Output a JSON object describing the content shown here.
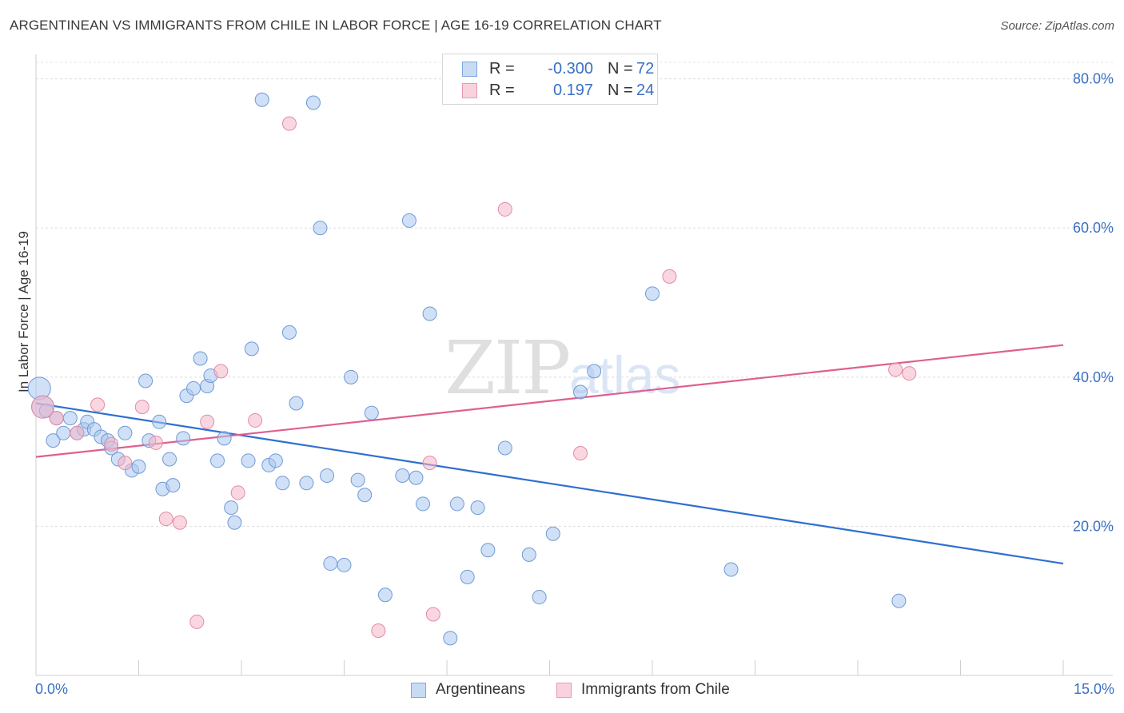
{
  "header": {
    "title": "ARGENTINEAN VS IMMIGRANTS FROM CHILE IN LABOR FORCE | AGE 16-19 CORRELATION CHART",
    "source": "Source: ZipAtlas.com"
  },
  "watermark": {
    "zip": "ZIP",
    "atlas": "atlas"
  },
  "legend": {
    "rows": [
      {
        "r_label": "R =",
        "r_value": "-0.300",
        "n_label": "N =",
        "n_value": "72",
        "color": "#a9c6ee"
      },
      {
        "r_label": "R =",
        "r_value": "0.197",
        "n_label": "N =",
        "n_value": "24",
        "color": "#f4b6c8"
      }
    ]
  },
  "bottom_legend": [
    {
      "label": "Argentineans",
      "color": "#a9c6ee"
    },
    {
      "label": "Immigrants from Chile",
      "color": "#f4b6c8"
    }
  ],
  "chart_data": {
    "type": "scatter",
    "ylabel": "In Labor Force | Age 16-19",
    "xlim": [
      0,
      15
    ],
    "ylim": [
      0,
      82
    ],
    "x_tick_labels": [
      {
        "value": 0,
        "label": "0.0%"
      },
      {
        "value": 15,
        "label": "15.0%"
      }
    ],
    "y_tick_labels": [
      {
        "value": 20,
        "label": "20.0%"
      },
      {
        "value": 40,
        "label": "40.0%"
      },
      {
        "value": 60,
        "label": "60.0%"
      },
      {
        "value": 80,
        "label": "80.0%"
      }
    ],
    "grid": true,
    "series": [
      {
        "name": "Argentineans",
        "color": "#a9c6ee",
        "stroke": "#6f9ad6",
        "trend_color": "#2f6fd0",
        "trend": {
          "x": [
            0,
            15
          ],
          "y": [
            36.5,
            15.0
          ]
        },
        "points": [
          [
            0.05,
            38.5
          ],
          [
            0.1,
            36.0
          ],
          [
            0.15,
            35.5
          ],
          [
            0.25,
            31.5
          ],
          [
            0.3,
            34.5
          ],
          [
            0.4,
            32.5
          ],
          [
            0.5,
            34.5
          ],
          [
            0.6,
            32.5
          ],
          [
            0.7,
            33.0
          ],
          [
            0.75,
            34.0
          ],
          [
            0.85,
            33.0
          ],
          [
            0.95,
            32.0
          ],
          [
            1.05,
            31.5
          ],
          [
            1.1,
            30.5
          ],
          [
            1.2,
            29.0
          ],
          [
            1.3,
            32.5
          ],
          [
            1.4,
            27.5
          ],
          [
            1.5,
            28.0
          ],
          [
            1.6,
            39.5
          ],
          [
            1.65,
            31.5
          ],
          [
            1.8,
            34.0
          ],
          [
            1.85,
            25.0
          ],
          [
            1.95,
            29.0
          ],
          [
            2.0,
            25.5
          ],
          [
            2.15,
            31.8
          ],
          [
            2.2,
            37.5
          ],
          [
            2.3,
            38.5
          ],
          [
            2.4,
            42.5
          ],
          [
            2.5,
            38.8
          ],
          [
            2.55,
            40.2
          ],
          [
            2.65,
            28.8
          ],
          [
            2.75,
            31.8
          ],
          [
            2.85,
            22.5
          ],
          [
            2.9,
            20.5
          ],
          [
            3.1,
            28.8
          ],
          [
            3.15,
            43.8
          ],
          [
            3.3,
            77.2
          ],
          [
            3.4,
            28.2
          ],
          [
            3.5,
            28.8
          ],
          [
            3.6,
            25.8
          ],
          [
            3.7,
            46.0
          ],
          [
            3.8,
            36.5
          ],
          [
            3.95,
            25.8
          ],
          [
            4.05,
            76.8
          ],
          [
            4.15,
            60.0
          ],
          [
            4.25,
            26.8
          ],
          [
            4.3,
            15.0
          ],
          [
            4.5,
            14.8
          ],
          [
            4.6,
            40.0
          ],
          [
            4.7,
            26.2
          ],
          [
            4.8,
            24.2
          ],
          [
            4.9,
            35.2
          ],
          [
            5.1,
            10.8
          ],
          [
            5.35,
            26.8
          ],
          [
            5.45,
            61.0
          ],
          [
            5.55,
            26.5
          ],
          [
            5.65,
            23.0
          ],
          [
            5.75,
            48.5
          ],
          [
            6.05,
            5.0
          ],
          [
            6.15,
            23.0
          ],
          [
            6.3,
            13.2
          ],
          [
            6.45,
            22.5
          ],
          [
            6.6,
            16.8
          ],
          [
            6.85,
            30.5
          ],
          [
            7.2,
            16.2
          ],
          [
            7.35,
            10.5
          ],
          [
            7.55,
            19.0
          ],
          [
            7.95,
            38.0
          ],
          [
            8.15,
            40.8
          ],
          [
            9.0,
            51.2
          ],
          [
            10.15,
            14.2
          ],
          [
            12.6,
            10.0
          ]
        ]
      },
      {
        "name": "Immigrants from Chile",
        "color": "#f4b6c8",
        "stroke": "#e38aa6",
        "trend_color": "#e05f8f",
        "trend": {
          "x": [
            0,
            15
          ],
          "y": [
            29.3,
            44.3
          ]
        },
        "points": [
          [
            0.1,
            36.0
          ],
          [
            0.3,
            34.5
          ],
          [
            0.6,
            32.5
          ],
          [
            0.9,
            36.3
          ],
          [
            1.1,
            31.0
          ],
          [
            1.3,
            28.5
          ],
          [
            1.55,
            36.0
          ],
          [
            1.75,
            31.2
          ],
          [
            1.9,
            21.0
          ],
          [
            2.1,
            20.5
          ],
          [
            2.35,
            7.2
          ],
          [
            2.5,
            34.0
          ],
          [
            2.7,
            40.8
          ],
          [
            2.95,
            24.5
          ],
          [
            3.2,
            34.2
          ],
          [
            3.7,
            74.0
          ],
          [
            5.0,
            6.0
          ],
          [
            5.75,
            28.5
          ],
          [
            5.8,
            8.2
          ],
          [
            6.85,
            62.5
          ],
          [
            7.95,
            29.8
          ],
          [
            9.25,
            53.5
          ],
          [
            12.55,
            41.0
          ],
          [
            12.75,
            40.5
          ]
        ]
      }
    ]
  }
}
